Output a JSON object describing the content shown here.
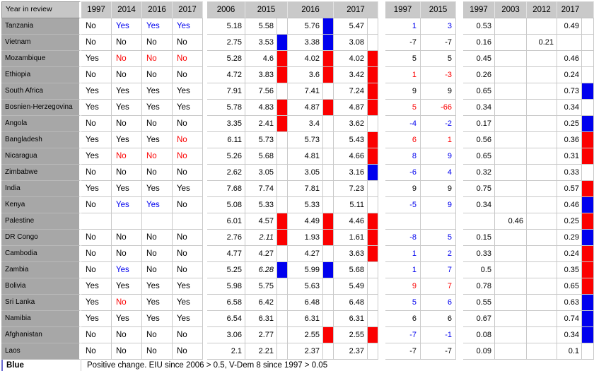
{
  "colors": {
    "blue": "#0000ee",
    "red": "#fb0000"
  },
  "header": {
    "name": "Year in review",
    "review": [
      "1997",
      "2014",
      "2016",
      "2017"
    ],
    "eiu": [
      "2006",
      "2015",
      "2016",
      "2017"
    ],
    "change": [
      "1997",
      "2015"
    ],
    "vdem": [
      "1997",
      "2003",
      "2012",
      "2017"
    ]
  },
  "legend": {
    "label": "Blue",
    "text": "Positive change. EIU since 2006 > 0.5, V-Dem 8 since 1997 > 0.05"
  },
  "rows": [
    {
      "country": "Tanzania",
      "review": [
        {
          "v": "No"
        },
        {
          "v": "Yes",
          "c": "blue"
        },
        {
          "v": "Yes",
          "c": "blue"
        },
        {
          "v": "Yes",
          "c": "blue"
        }
      ],
      "eiu": [
        {
          "v": "5.18"
        },
        {
          "v": "5.58"
        },
        {
          "v": "5.76",
          "ind": "blue"
        },
        {
          "v": "5.47"
        }
      ],
      "change": [
        {
          "v": "1",
          "c": "blue"
        },
        {
          "v": "3",
          "c": "blue"
        }
      ],
      "vdem": [
        {
          "v": "0.53"
        },
        {
          "v": ""
        },
        {
          "v": ""
        },
        {
          "v": "0.49"
        }
      ],
      "vdem_ind": ""
    },
    {
      "country": "Vietnam",
      "review": [
        {
          "v": "No"
        },
        {
          "v": "No"
        },
        {
          "v": "No"
        },
        {
          "v": "No"
        }
      ],
      "eiu": [
        {
          "v": "2.75"
        },
        {
          "v": "3.53",
          "ind": "blue"
        },
        {
          "v": "3.38",
          "ind": "blue"
        },
        {
          "v": "3.08"
        }
      ],
      "change": [
        {
          "v": "-7"
        },
        {
          "v": "-7"
        }
      ],
      "vdem": [
        {
          "v": "0.16"
        },
        {
          "v": ""
        },
        {
          "v": "0.21"
        },
        {
          "v": ""
        }
      ],
      "vdem_ind": ""
    },
    {
      "country": "Mozambique",
      "review": [
        {
          "v": "Yes"
        },
        {
          "v": "No",
          "c": "red"
        },
        {
          "v": "No",
          "c": "red"
        },
        {
          "v": "No",
          "c": "red"
        }
      ],
      "eiu": [
        {
          "v": "5.28"
        },
        {
          "v": "4.6",
          "ind": "red"
        },
        {
          "v": "4.02",
          "ind": "red"
        },
        {
          "v": "4.02",
          "ind": "red"
        }
      ],
      "change": [
        {
          "v": "5"
        },
        {
          "v": "5"
        }
      ],
      "vdem": [
        {
          "v": "0.45"
        },
        {
          "v": ""
        },
        {
          "v": ""
        },
        {
          "v": "0.46"
        }
      ],
      "vdem_ind": ""
    },
    {
      "country": "Ethiopia",
      "review": [
        {
          "v": "No"
        },
        {
          "v": "No"
        },
        {
          "v": "No"
        },
        {
          "v": "No"
        }
      ],
      "eiu": [
        {
          "v": "4.72"
        },
        {
          "v": "3.83",
          "ind": "red"
        },
        {
          "v": "3.6",
          "ind": "red"
        },
        {
          "v": "3.42",
          "ind": "red"
        }
      ],
      "change": [
        {
          "v": "1",
          "c": "red"
        },
        {
          "v": "-3",
          "c": "red"
        }
      ],
      "vdem": [
        {
          "v": "0.26"
        },
        {
          "v": ""
        },
        {
          "v": ""
        },
        {
          "v": "0.24"
        }
      ],
      "vdem_ind": ""
    },
    {
      "country": "South Africa",
      "review": [
        {
          "v": "Yes"
        },
        {
          "v": "Yes"
        },
        {
          "v": "Yes"
        },
        {
          "v": "Yes"
        }
      ],
      "eiu": [
        {
          "v": "7.91"
        },
        {
          "v": "7.56"
        },
        {
          "v": "7.41"
        },
        {
          "v": "7.24",
          "ind": "red"
        }
      ],
      "change": [
        {
          "v": "9"
        },
        {
          "v": "9"
        }
      ],
      "vdem": [
        {
          "v": "0.65"
        },
        {
          "v": ""
        },
        {
          "v": ""
        },
        {
          "v": "0.73"
        }
      ],
      "vdem_ind": "blue"
    },
    {
      "country": "Bosnien-Herzegovina",
      "review": [
        {
          "v": "Yes"
        },
        {
          "v": "Yes"
        },
        {
          "v": "Yes"
        },
        {
          "v": "Yes"
        }
      ],
      "eiu": [
        {
          "v": "5.78"
        },
        {
          "v": "4.83",
          "ind": "red"
        },
        {
          "v": "4.87",
          "ind": "red"
        },
        {
          "v": "4.87",
          "ind": "red"
        }
      ],
      "change": [
        {
          "v": "5",
          "c": "red"
        },
        {
          "v": "-66",
          "c": "red"
        }
      ],
      "vdem": [
        {
          "v": "0.34"
        },
        {
          "v": ""
        },
        {
          "v": ""
        },
        {
          "v": "0.34"
        }
      ],
      "vdem_ind": ""
    },
    {
      "country": "Angola",
      "review": [
        {
          "v": "No"
        },
        {
          "v": "No"
        },
        {
          "v": "No"
        },
        {
          "v": "No"
        }
      ],
      "eiu": [
        {
          "v": "3.35"
        },
        {
          "v": "2.41",
          "ind": "red"
        },
        {
          "v": "3.4"
        },
        {
          "v": "3.62"
        }
      ],
      "change": [
        {
          "v": "-4",
          "c": "blue"
        },
        {
          "v": "-2",
          "c": "blue"
        }
      ],
      "vdem": [
        {
          "v": "0.17"
        },
        {
          "v": ""
        },
        {
          "v": ""
        },
        {
          "v": "0.25"
        }
      ],
      "vdem_ind": "blue"
    },
    {
      "country": "Bangladesh",
      "review": [
        {
          "v": "Yes"
        },
        {
          "v": "Yes"
        },
        {
          "v": "Yes"
        },
        {
          "v": "No",
          "c": "red"
        }
      ],
      "eiu": [
        {
          "v": "6.11"
        },
        {
          "v": "5.73"
        },
        {
          "v": "5.73"
        },
        {
          "v": "5.43",
          "ind": "red"
        }
      ],
      "change": [
        {
          "v": "6",
          "c": "red"
        },
        {
          "v": "1",
          "c": "red"
        }
      ],
      "vdem": [
        {
          "v": "0.56"
        },
        {
          "v": ""
        },
        {
          "v": ""
        },
        {
          "v": "0.36"
        }
      ],
      "vdem_ind": "red"
    },
    {
      "country": "Nicaragua",
      "review": [
        {
          "v": "Yes"
        },
        {
          "v": "No",
          "c": "red"
        },
        {
          "v": "No",
          "c": "red"
        },
        {
          "v": "No",
          "c": "red"
        }
      ],
      "eiu": [
        {
          "v": "5.26"
        },
        {
          "v": "5.68"
        },
        {
          "v": "4.81"
        },
        {
          "v": "4.66",
          "ind": "red"
        }
      ],
      "change": [
        {
          "v": "8",
          "c": "blue"
        },
        {
          "v": "9",
          "c": "blue"
        }
      ],
      "vdem": [
        {
          "v": "0.65"
        },
        {
          "v": ""
        },
        {
          "v": ""
        },
        {
          "v": "0.31"
        }
      ],
      "vdem_ind": "red"
    },
    {
      "country": "Zimbabwe",
      "review": [
        {
          "v": "No"
        },
        {
          "v": "No"
        },
        {
          "v": "No"
        },
        {
          "v": "No"
        }
      ],
      "eiu": [
        {
          "v": "2.62"
        },
        {
          "v": "3.05"
        },
        {
          "v": "3.05"
        },
        {
          "v": "3.16",
          "ind": "blue"
        }
      ],
      "change": [
        {
          "v": "-6",
          "c": "blue"
        },
        {
          "v": "4",
          "c": "blue"
        }
      ],
      "vdem": [
        {
          "v": "0.32"
        },
        {
          "v": ""
        },
        {
          "v": ""
        },
        {
          "v": "0.33"
        }
      ],
      "vdem_ind": ""
    },
    {
      "country": "India",
      "review": [
        {
          "v": "Yes"
        },
        {
          "v": "Yes"
        },
        {
          "v": "Yes"
        },
        {
          "v": "Yes"
        }
      ],
      "eiu": [
        {
          "v": "7.68"
        },
        {
          "v": "7.74"
        },
        {
          "v": "7.81"
        },
        {
          "v": "7.23"
        }
      ],
      "change": [
        {
          "v": "9"
        },
        {
          "v": "9"
        }
      ],
      "vdem": [
        {
          "v": "0.75"
        },
        {
          "v": ""
        },
        {
          "v": ""
        },
        {
          "v": "0.57"
        }
      ],
      "vdem_ind": "red"
    },
    {
      "country": "Kenya",
      "review": [
        {
          "v": "No"
        },
        {
          "v": "Yes",
          "c": "blue"
        },
        {
          "v": "Yes",
          "c": "blue"
        },
        {
          "v": "No"
        }
      ],
      "eiu": [
        {
          "v": "5.08"
        },
        {
          "v": "5.33"
        },
        {
          "v": "5.33"
        },
        {
          "v": "5.11"
        }
      ],
      "change": [
        {
          "v": "-5",
          "c": "blue"
        },
        {
          "v": "9",
          "c": "blue"
        }
      ],
      "vdem": [
        {
          "v": "0.34"
        },
        {
          "v": ""
        },
        {
          "v": ""
        },
        {
          "v": "0.46"
        }
      ],
      "vdem_ind": "blue"
    },
    {
      "country": "Palestine",
      "review": [
        {
          "v": ""
        },
        {
          "v": ""
        },
        {
          "v": ""
        },
        {
          "v": ""
        }
      ],
      "eiu": [
        {
          "v": "6.01"
        },
        {
          "v": "4.57",
          "ind": "red"
        },
        {
          "v": "4.49",
          "ind": "red"
        },
        {
          "v": "4.46",
          "ind": "red"
        }
      ],
      "change": [
        {
          "v": ""
        },
        {
          "v": ""
        }
      ],
      "vdem": [
        {
          "v": ""
        },
        {
          "v": "0.46"
        },
        {
          "v": ""
        },
        {
          "v": "0.25"
        }
      ],
      "vdem_ind": "red"
    },
    {
      "country": "DR Congo",
      "review": [
        {
          "v": "No"
        },
        {
          "v": "No"
        },
        {
          "v": "No"
        },
        {
          "v": "No"
        }
      ],
      "eiu": [
        {
          "v": "2.76"
        },
        {
          "v": "2.11",
          "i": true,
          "ind": "red"
        },
        {
          "v": "1.93",
          "ind": "red"
        },
        {
          "v": "1.61",
          "ind": "red"
        }
      ],
      "change": [
        {
          "v": "-8",
          "c": "blue"
        },
        {
          "v": "5",
          "c": "blue"
        }
      ],
      "vdem": [
        {
          "v": "0.15"
        },
        {
          "v": ""
        },
        {
          "v": ""
        },
        {
          "v": "0.29"
        }
      ],
      "vdem_ind": "blue"
    },
    {
      "country": "Cambodia",
      "review": [
        {
          "v": "No"
        },
        {
          "v": "No"
        },
        {
          "v": "No"
        },
        {
          "v": "No"
        }
      ],
      "eiu": [
        {
          "v": "4.77"
        },
        {
          "v": "4.27"
        },
        {
          "v": "4.27"
        },
        {
          "v": "3.63",
          "ind": "red"
        }
      ],
      "change": [
        {
          "v": "1",
          "c": "blue"
        },
        {
          "v": "2",
          "c": "blue"
        }
      ],
      "vdem": [
        {
          "v": "0.33"
        },
        {
          "v": ""
        },
        {
          "v": ""
        },
        {
          "v": "0.24"
        }
      ],
      "vdem_ind": "red"
    },
    {
      "country": "Zambia",
      "review": [
        {
          "v": "No"
        },
        {
          "v": "Yes",
          "c": "blue"
        },
        {
          "v": "No"
        },
        {
          "v": "No"
        }
      ],
      "eiu": [
        {
          "v": "5.25"
        },
        {
          "v": "6.28",
          "i": true,
          "ind": "blue"
        },
        {
          "v": "5.99",
          "ind": "blue"
        },
        {
          "v": "5.68"
        }
      ],
      "change": [
        {
          "v": "1",
          "c": "blue"
        },
        {
          "v": "7",
          "c": "blue"
        }
      ],
      "vdem": [
        {
          "v": "0.5"
        },
        {
          "v": ""
        },
        {
          "v": ""
        },
        {
          "v": "0.35"
        }
      ],
      "vdem_ind": "red"
    },
    {
      "country": "Bolivia",
      "review": [
        {
          "v": "Yes"
        },
        {
          "v": "Yes"
        },
        {
          "v": "Yes"
        },
        {
          "v": "Yes"
        }
      ],
      "eiu": [
        {
          "v": "5.98"
        },
        {
          "v": "5.75"
        },
        {
          "v": "5.63"
        },
        {
          "v": "5.49"
        }
      ],
      "change": [
        {
          "v": "9",
          "c": "red"
        },
        {
          "v": "7",
          "c": "red"
        }
      ],
      "vdem": [
        {
          "v": "0.78"
        },
        {
          "v": ""
        },
        {
          "v": ""
        },
        {
          "v": "0.65"
        }
      ],
      "vdem_ind": "red"
    },
    {
      "country": "Sri Lanka",
      "review": [
        {
          "v": "Yes"
        },
        {
          "v": "No",
          "c": "red"
        },
        {
          "v": "Yes"
        },
        {
          "v": "Yes"
        }
      ],
      "eiu": [
        {
          "v": "6.58"
        },
        {
          "v": "6.42"
        },
        {
          "v": "6.48"
        },
        {
          "v": "6.48"
        }
      ],
      "change": [
        {
          "v": "5",
          "c": "blue"
        },
        {
          "v": "6",
          "c": "blue"
        }
      ],
      "vdem": [
        {
          "v": "0.55"
        },
        {
          "v": ""
        },
        {
          "v": ""
        },
        {
          "v": "0.63"
        }
      ],
      "vdem_ind": "blue"
    },
    {
      "country": "Namibia",
      "review": [
        {
          "v": "Yes"
        },
        {
          "v": "Yes"
        },
        {
          "v": "Yes"
        },
        {
          "v": "Yes"
        }
      ],
      "eiu": [
        {
          "v": "6.54"
        },
        {
          "v": "6.31"
        },
        {
          "v": "6.31"
        },
        {
          "v": "6.31"
        }
      ],
      "change": [
        {
          "v": "6"
        },
        {
          "v": "6"
        }
      ],
      "vdem": [
        {
          "v": "0.67"
        },
        {
          "v": ""
        },
        {
          "v": ""
        },
        {
          "v": "0.74"
        }
      ],
      "vdem_ind": "blue"
    },
    {
      "country": "Afghanistan",
      "review": [
        {
          "v": "No"
        },
        {
          "v": "No"
        },
        {
          "v": "No"
        },
        {
          "v": "No"
        }
      ],
      "eiu": [
        {
          "v": "3.06"
        },
        {
          "v": "2.77"
        },
        {
          "v": "2.55",
          "ind": "red"
        },
        {
          "v": "2.55",
          "ind": "red"
        }
      ],
      "change": [
        {
          "v": "-7",
          "c": "blue"
        },
        {
          "v": "-1",
          "c": "blue"
        }
      ],
      "vdem": [
        {
          "v": "0.08"
        },
        {
          "v": ""
        },
        {
          "v": ""
        },
        {
          "v": "0.34"
        }
      ],
      "vdem_ind": "blue"
    },
    {
      "country": "Laos",
      "review": [
        {
          "v": "No"
        },
        {
          "v": "No"
        },
        {
          "v": "No"
        },
        {
          "v": "No"
        }
      ],
      "eiu": [
        {
          "v": "2.1"
        },
        {
          "v": "2.21"
        },
        {
          "v": "2.37"
        },
        {
          "v": "2.37"
        }
      ],
      "change": [
        {
          "v": "-7"
        },
        {
          "v": "-7"
        }
      ],
      "vdem": [
        {
          "v": "0.09"
        },
        {
          "v": ""
        },
        {
          "v": ""
        },
        {
          "v": "0.1"
        }
      ],
      "vdem_ind": ""
    }
  ]
}
